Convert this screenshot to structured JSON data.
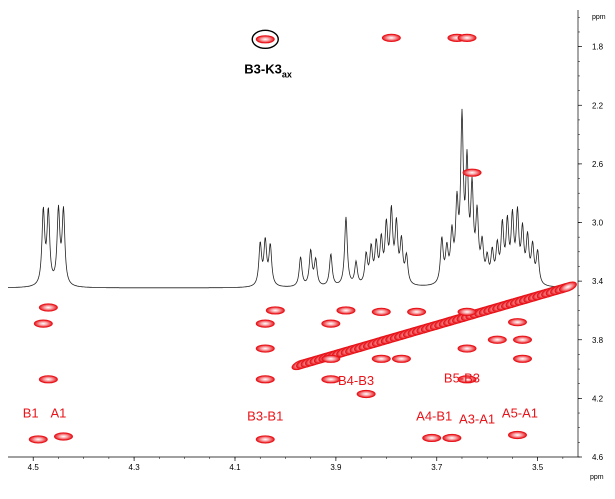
{
  "chart_data": {
    "type": "scatter",
    "title": "",
    "x_unit": "ppm",
    "y_unit": "ppm",
    "xlim": [
      4.55,
      3.42
    ],
    "ylim": [
      1.55,
      4.6
    ],
    "x_ticks": [
      "4.5",
      "4.3",
      "4.1",
      "3.9",
      "3.7",
      "3.5"
    ],
    "x_tick_values": [
      4.5,
      4.3,
      4.1,
      3.9,
      3.7,
      3.5
    ],
    "y_ticks": [
      "1.8",
      "2.2",
      "2.6",
      "3.0",
      "3.4",
      "3.8",
      "4.2",
      "4.6"
    ],
    "y_tick_values": [
      1.8,
      2.2,
      2.6,
      3.0,
      3.4,
      3.8,
      4.2,
      4.6
    ],
    "grid": false,
    "peak_color": "#e8141a",
    "highlight": {
      "label_main": "B3-K3",
      "label_sub": "ax",
      "x": 4.04,
      "y": 1.75
    },
    "cross_peaks": [
      {
        "x": 4.04,
        "y": 1.75
      },
      {
        "x": 3.79,
        "y": 1.74
      },
      {
        "x": 3.66,
        "y": 1.74
      },
      {
        "x": 3.64,
        "y": 1.74
      },
      {
        "x": 3.63,
        "y": 2.66
      },
      {
        "x": 4.47,
        "y": 3.58
      },
      {
        "x": 4.48,
        "y": 3.69
      },
      {
        "x": 4.47,
        "y": 4.07
      },
      {
        "x": 4.49,
        "y": 4.48
      },
      {
        "x": 4.44,
        "y": 4.46
      },
      {
        "x": 4.04,
        "y": 3.69
      },
      {
        "x": 4.04,
        "y": 3.86
      },
      {
        "x": 4.04,
        "y": 4.07
      },
      {
        "x": 4.04,
        "y": 4.48
      },
      {
        "x": 3.91,
        "y": 3.69
      },
      {
        "x": 3.91,
        "y": 3.93
      },
      {
        "x": 3.91,
        "y": 4.07
      },
      {
        "x": 3.81,
        "y": 3.61
      },
      {
        "x": 3.74,
        "y": 3.61
      },
      {
        "x": 3.81,
        "y": 3.93
      },
      {
        "x": 3.77,
        "y": 3.93
      },
      {
        "x": 3.67,
        "y": 4.47
      },
      {
        "x": 3.71,
        "y": 4.47
      },
      {
        "x": 3.64,
        "y": 3.61
      },
      {
        "x": 3.64,
        "y": 3.86
      },
      {
        "x": 3.64,
        "y": 4.07
      },
      {
        "x": 3.54,
        "y": 3.68
      },
      {
        "x": 3.53,
        "y": 3.8
      },
      {
        "x": 3.58,
        "y": 3.8
      },
      {
        "x": 3.53,
        "y": 3.93
      },
      {
        "x": 3.54,
        "y": 4.45
      },
      {
        "x": 3.88,
        "y": 3.6
      },
      {
        "x": 3.84,
        "y": 4.17
      },
      {
        "x": 4.02,
        "y": 3.6
      }
    ],
    "diagonal": {
      "from_x": 3.97,
      "from_y": 3.97,
      "to_x": 3.44,
      "to_y": 3.44
    },
    "annotations": [
      {
        "text": "B1",
        "x": 4.505,
        "y": 4.33
      },
      {
        "text": "A1",
        "x": 4.45,
        "y": 4.33
      },
      {
        "text": "B3-B1",
        "x": 4.04,
        "y": 4.35
      },
      {
        "text": "B4-B3",
        "x": 3.86,
        "y": 4.11
      },
      {
        "text": "B5-B3",
        "x": 3.65,
        "y": 4.09
      },
      {
        "text": "A4-B1",
        "x": 3.705,
        "y": 4.35
      },
      {
        "text": "A3-A1",
        "x": 3.62,
        "y": 4.37
      },
      {
        "text": "A5-A1",
        "x": 3.535,
        "y": 4.33
      }
    ],
    "spectrum_1d_peaks": [
      {
        "x": 4.48,
        "h": 0.8
      },
      {
        "x": 4.47,
        "h": 0.78
      },
      {
        "x": 4.45,
        "h": 0.8
      },
      {
        "x": 4.44,
        "h": 0.8
      },
      {
        "x": 4.05,
        "h": 0.45
      },
      {
        "x": 4.04,
        "h": 0.47
      },
      {
        "x": 4.03,
        "h": 0.43
      },
      {
        "x": 3.97,
        "h": 0.32
      },
      {
        "x": 3.95,
        "h": 0.38
      },
      {
        "x": 3.94,
        "h": 0.28
      },
      {
        "x": 3.91,
        "h": 0.35
      },
      {
        "x": 3.88,
        "h": 0.75
      },
      {
        "x": 3.86,
        "h": 0.25
      },
      {
        "x": 3.84,
        "h": 0.32
      },
      {
        "x": 3.83,
        "h": 0.38
      },
      {
        "x": 3.82,
        "h": 0.42
      },
      {
        "x": 3.81,
        "h": 0.45
      },
      {
        "x": 3.8,
        "h": 0.6
      },
      {
        "x": 3.79,
        "h": 0.75
      },
      {
        "x": 3.78,
        "h": 0.62
      },
      {
        "x": 3.77,
        "h": 0.45
      },
      {
        "x": 3.76,
        "h": 0.3
      },
      {
        "x": 3.69,
        "h": 0.48
      },
      {
        "x": 3.68,
        "h": 0.35
      },
      {
        "x": 3.67,
        "h": 0.5
      },
      {
        "x": 3.66,
        "h": 0.78
      },
      {
        "x": 3.65,
        "h": 1.7
      },
      {
        "x": 3.64,
        "h": 1.2
      },
      {
        "x": 3.63,
        "h": 0.95
      },
      {
        "x": 3.62,
        "h": 0.7
      },
      {
        "x": 3.61,
        "h": 0.4
      },
      {
        "x": 3.6,
        "h": 0.25
      },
      {
        "x": 3.59,
        "h": 0.32
      },
      {
        "x": 3.58,
        "h": 0.38
      },
      {
        "x": 3.57,
        "h": 0.6
      },
      {
        "x": 3.56,
        "h": 0.62
      },
      {
        "x": 3.55,
        "h": 0.68
      },
      {
        "x": 3.54,
        "h": 0.72
      },
      {
        "x": 3.53,
        "h": 0.55
      },
      {
        "x": 3.52,
        "h": 0.48
      },
      {
        "x": 3.51,
        "h": 0.4
      },
      {
        "x": 3.5,
        "h": 0.35
      }
    ]
  }
}
